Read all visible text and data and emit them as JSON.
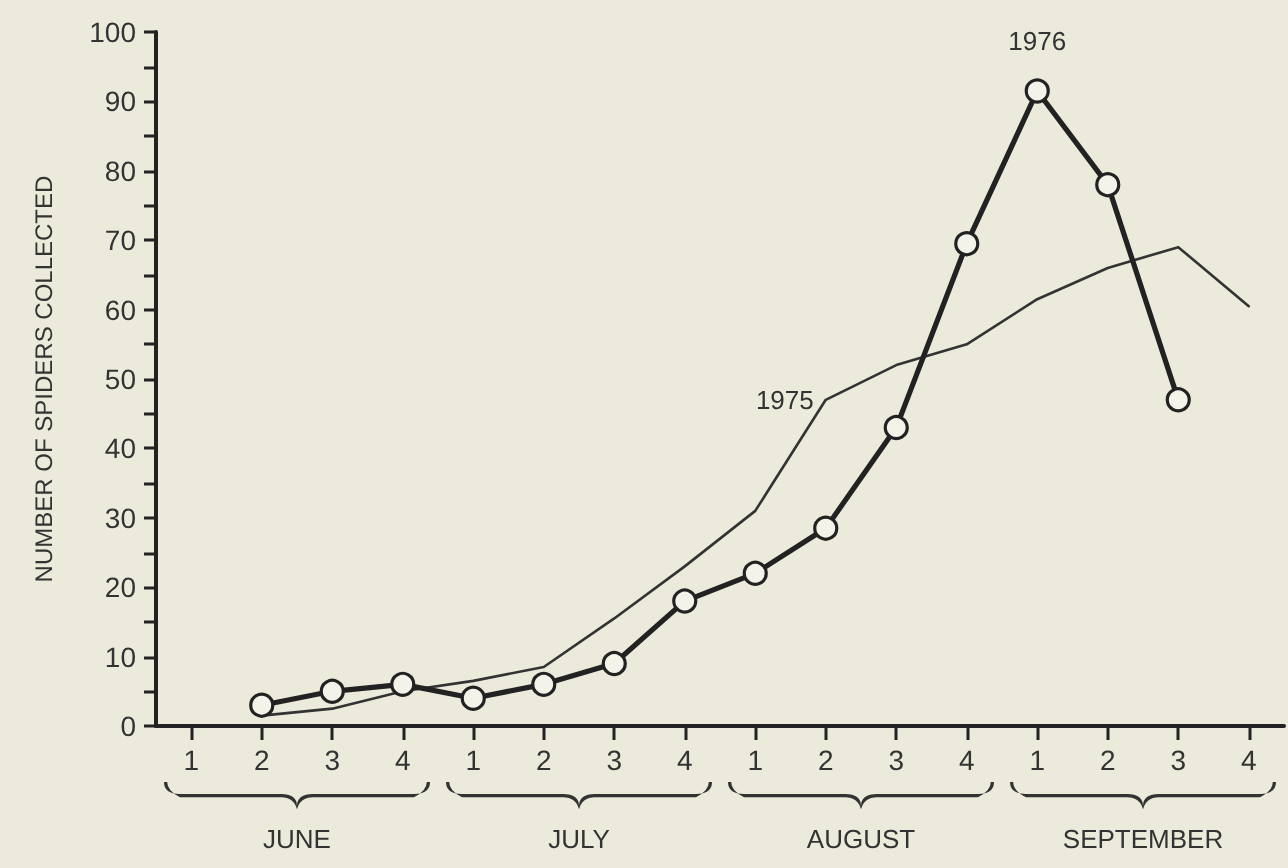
{
  "chart_data": {
    "type": "line",
    "ylabel": "NUMBER OF SPIDERS COLLECTED",
    "categories": [
      "1",
      "2",
      "3",
      "4",
      "1",
      "2",
      "3",
      "4",
      "1",
      "2",
      "3",
      "4",
      "1",
      "2",
      "3",
      "4"
    ],
    "annotations": [
      "JUNE",
      "JULY",
      "AUGUST",
      "SEPTEMBER"
    ],
    "series": [
      {
        "name": "1975",
        "color": "#333333",
        "marker": "none",
        "values": [
          null,
          1.5,
          2.5,
          5,
          6.5,
          8.5,
          15.5,
          23,
          31,
          47,
          52,
          55,
          61.5,
          66,
          69,
          60.5
        ]
      },
      {
        "name": "1976",
        "color": "#222222",
        "marker": "circle",
        "values": [
          null,
          3,
          5,
          6,
          4,
          6,
          9,
          18,
          22,
          28.5,
          43,
          69.5,
          91.5,
          78,
          47,
          null
        ]
      }
    ],
    "ylim": [
      0,
      100
    ],
    "yticks": [
      0,
      {
        "value": 5,
        "label": null
      },
      10,
      {
        "value": 15,
        "label": null
      },
      20,
      {
        "value": 25,
        "label": null
      },
      30,
      {
        "value": 35,
        "label": null
      },
      40,
      {
        "value": 45,
        "label": null
      },
      50,
      {
        "value": 55,
        "label": null
      },
      60,
      {
        "value": 65,
        "label": null
      },
      70,
      {
        "value": 75,
        "label": null
      },
      80,
      {
        "value": 85,
        "label": null
      },
      90,
      {
        "value": 95,
        "label": null
      },
      100
    ],
    "grid": false,
    "legend": false
  }
}
